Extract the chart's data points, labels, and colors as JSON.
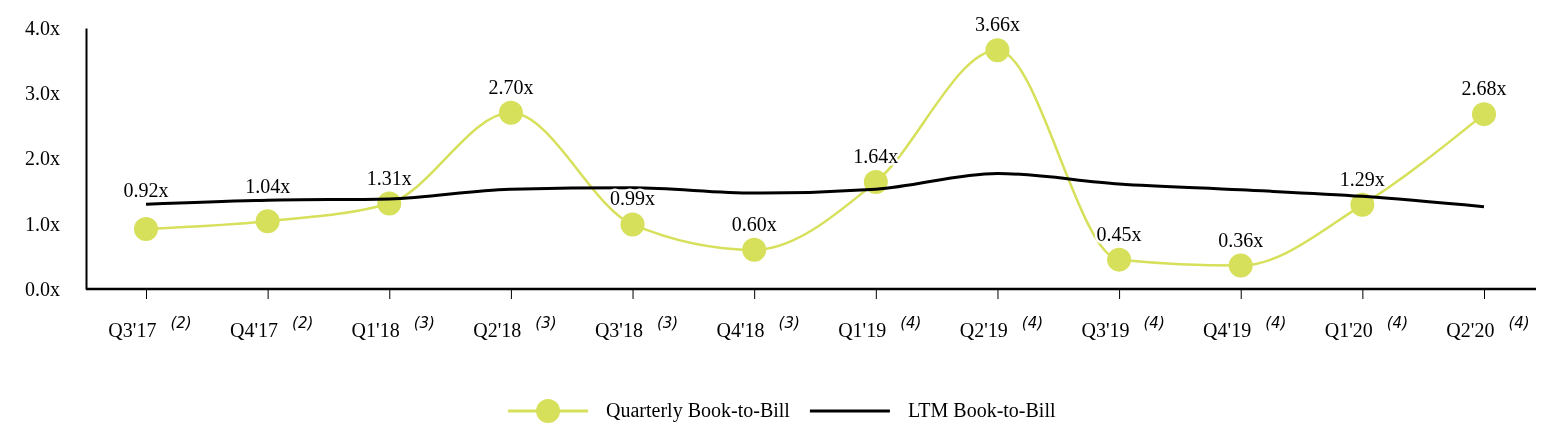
{
  "chart_data": {
    "type": "line",
    "categories": [
      "Q3'17 $^{(2)}$",
      "Q4'17 $^{(2)}$",
      "Q1'18 $^{(3)}$",
      "Q2'18 $^{(3)}$",
      "Q3'18 $^{(3)}$",
      "Q4'18 $^{(3)}$",
      "Q1'19 $^{(4)}$",
      "Q2'19 $^{(4)}$",
      "Q3'19 $^{(4)}$",
      "Q4'19 $^{(4)}$",
      "Q1'20 $^{(4)}$",
      "Q2'20 $^{(4)}$"
    ],
    "series": [
      {
        "name": "Quarterly Book-to-Bill",
        "color": "#d6e05a",
        "marker": "circle",
        "values": [
          0.92,
          1.04,
          1.31,
          2.7,
          0.99,
          0.6,
          1.64,
          3.66,
          0.45,
          0.36,
          1.29,
          2.68
        ],
        "value_labels": [
          "0.92x",
          "1.04x",
          "1.31x",
          "2.70x",
          "0.99x",
          "0.60x",
          "1.64x",
          "3.66x",
          "0.45x",
          "0.36x",
          "1.29x",
          "2.68x"
        ]
      },
      {
        "name": "LTM Book-to-Bill",
        "color": "#000000",
        "marker": "none",
        "values": [
          1.3,
          1.36,
          1.38,
          1.53,
          1.55,
          1.47,
          1.53,
          1.77,
          1.61,
          1.52,
          1.42,
          1.26
        ]
      }
    ],
    "ylim": [
      0,
      4
    ],
    "yticks": [
      {
        "value": 0,
        "label": "0.0x"
      },
      {
        "value": 1,
        "label": "1.0x"
      },
      {
        "value": 2,
        "label": "2.0x"
      },
      {
        "value": 3,
        "label": "3.0x"
      },
      {
        "value": 4,
        "label": "4.0x"
      }
    ],
    "grid": false,
    "legend": "bottom",
    "line_style": "solid"
  }
}
